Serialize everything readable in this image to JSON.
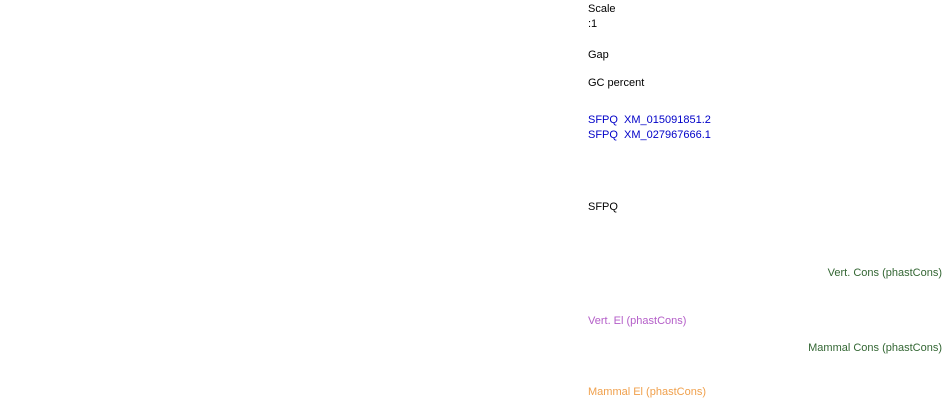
{
  "app": {
    "description": "Genome browser track label column"
  },
  "colors": {
    "background": "#ffffff",
    "text": "#000000",
    "refseq_blue": "#0000c8",
    "cons_green": "#336633",
    "vert_el_purple": "#b45ec8",
    "mammal_el_orange": "#f0a04c"
  },
  "tracks": {
    "scale": {
      "label": "Scale",
      "value": ":1"
    },
    "gap": {
      "label": "Gap"
    },
    "gc_percent": {
      "label": "GC percent"
    },
    "refseq": {
      "items": [
        {
          "gene": "SFPQ",
          "accession": "XM_015091851.2",
          "label": "SFPQ  XM_015091851.2"
        },
        {
          "gene": "SFPQ",
          "accession": "XM_027967666.1",
          "label": "SFPQ  XM_027967666.1"
        }
      ]
    },
    "gene": {
      "label": "SFPQ"
    },
    "vert_cons": {
      "label": "Vert. Cons (phastCons)"
    },
    "vert_el": {
      "label": "Vert. El (phastCons)"
    },
    "mammal_cons": {
      "label": "Mammal Cons (phastCons)"
    },
    "mammal_el": {
      "label": "Mammal El (phastCons)"
    }
  }
}
